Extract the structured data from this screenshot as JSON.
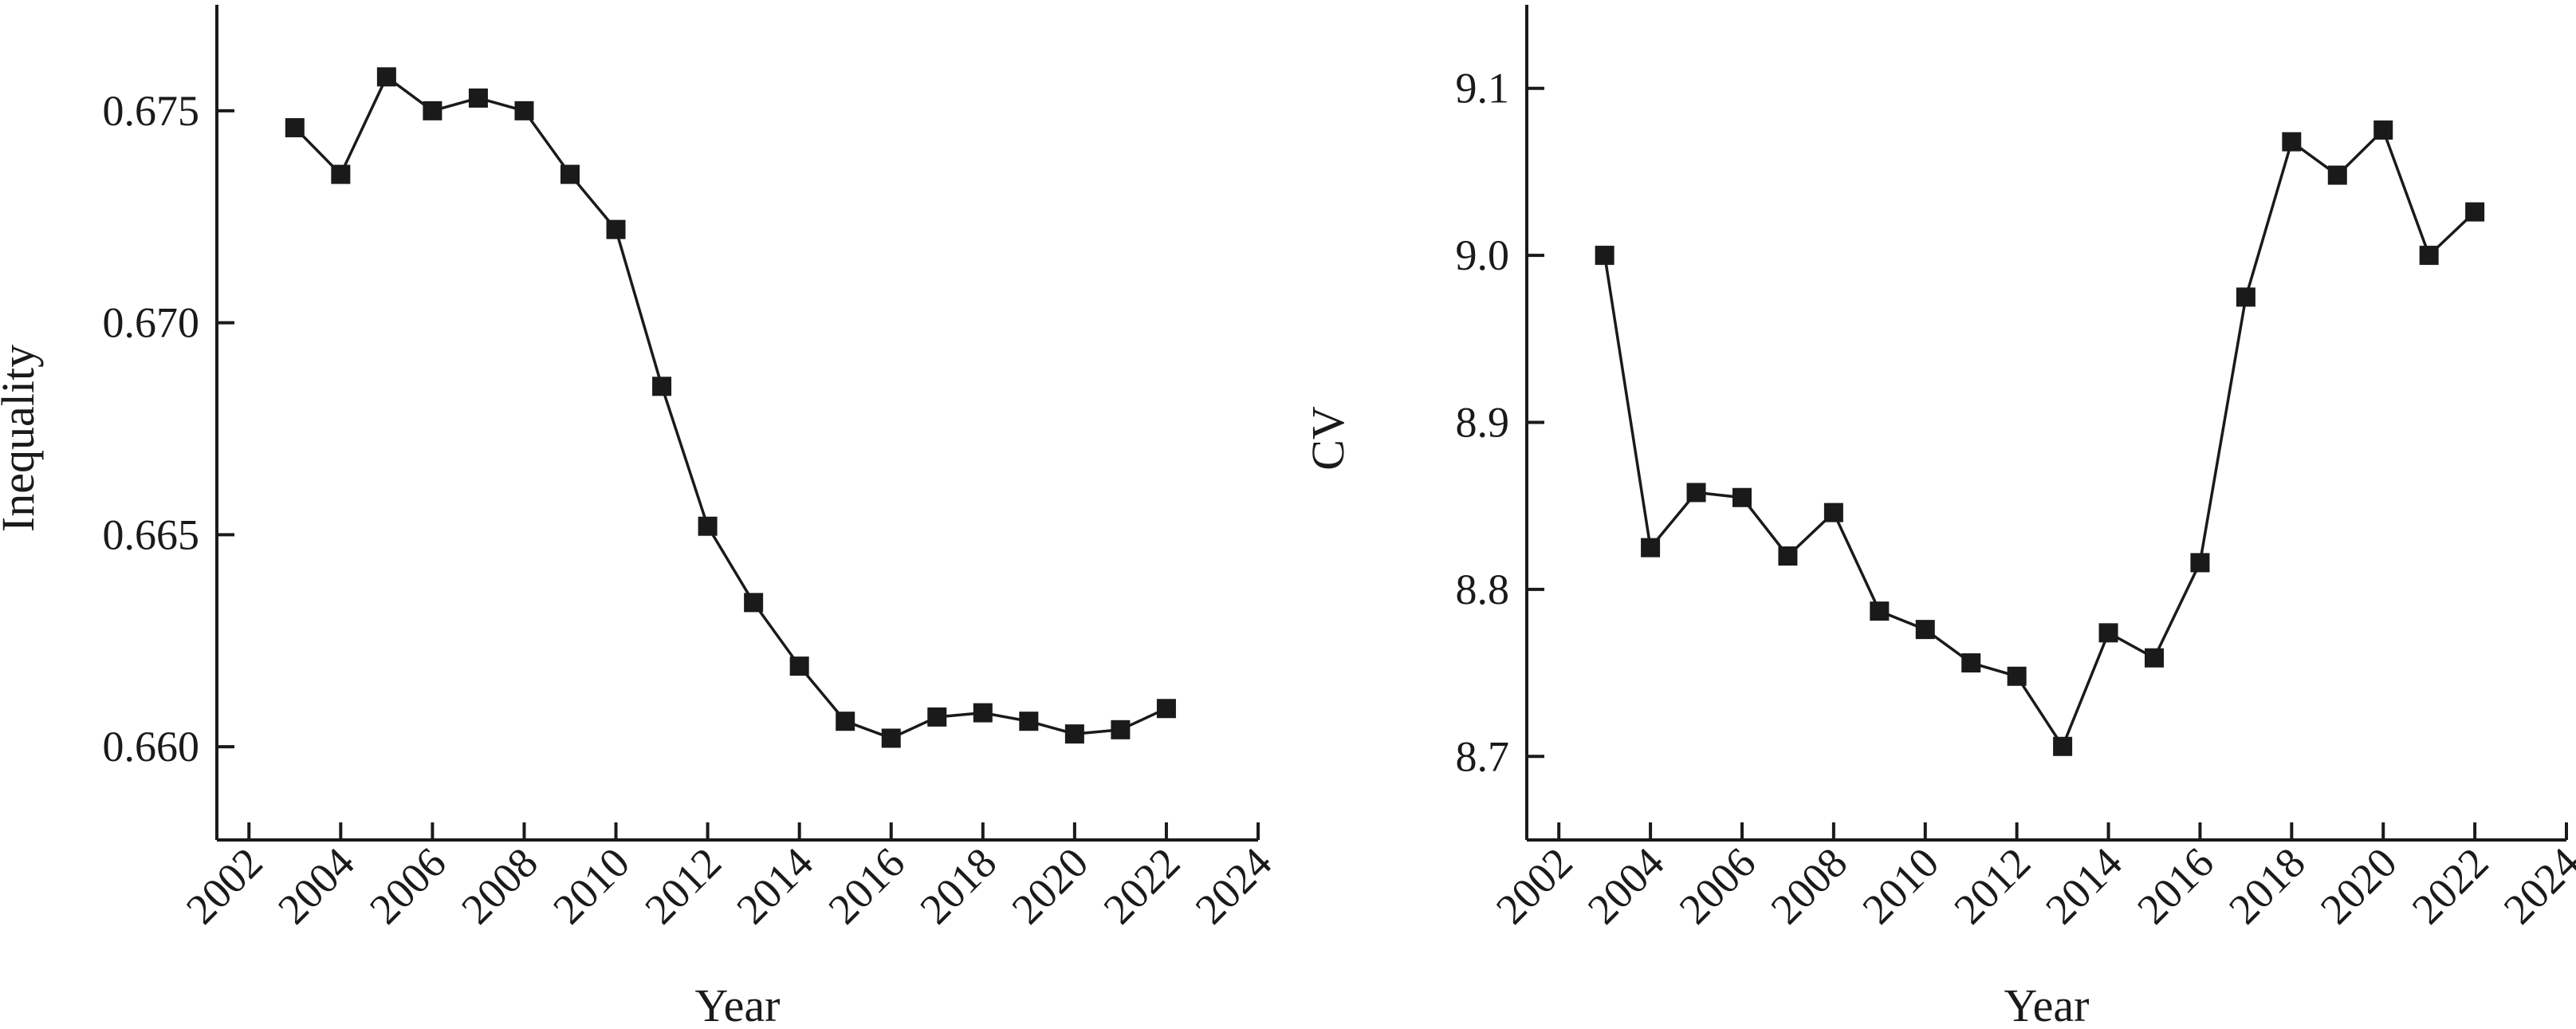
{
  "chart_data": [
    {
      "type": "line",
      "title": "",
      "xlabel": "Year",
      "ylabel": "Inequality",
      "xlim": [
        2001.3,
        2024
      ],
      "ylim": [
        0.6578,
        0.6775
      ],
      "xticks": [
        2002,
        2004,
        2006,
        2008,
        2010,
        2012,
        2014,
        2016,
        2018,
        2020,
        2022,
        2024
      ],
      "xtick_labels": [
        "2002",
        "2004",
        "2006",
        "2008",
        "2010",
        "2012",
        "2014",
        "2016",
        "2018",
        "2020",
        "2022",
        "2024"
      ],
      "yticks": [
        0.66,
        0.665,
        0.67,
        0.675
      ],
      "ytick_labels": [
        "0.660",
        "0.665",
        "0.670",
        "0.675"
      ],
      "grid": false,
      "legend": "none",
      "x": [
        2003,
        2004,
        2005,
        2006,
        2007,
        2008,
        2009,
        2010,
        2011,
        2012,
        2013,
        2014,
        2015,
        2016,
        2017,
        2018,
        2019,
        2020,
        2021,
        2022
      ],
      "values": [
        0.6746,
        0.6735,
        0.6758,
        0.675,
        0.6753,
        0.675,
        0.6735,
        0.6722,
        0.6685,
        0.6652,
        0.6634,
        0.6619,
        0.6606,
        0.6602,
        0.6607,
        0.6608,
        0.6606,
        0.6603,
        0.6604,
        0.6609
      ]
    },
    {
      "type": "line",
      "title": "",
      "xlabel": "Year",
      "ylabel": "CV",
      "xlim": [
        2001.3,
        2024
      ],
      "ylim": [
        8.65,
        9.15
      ],
      "xticks": [
        2002,
        2004,
        2006,
        2008,
        2010,
        2012,
        2014,
        2016,
        2018,
        2020,
        2022,
        2024
      ],
      "xtick_labels": [
        "2002",
        "2004",
        "2006",
        "2008",
        "2010",
        "2012",
        "2014",
        "2016",
        "2018",
        "2020",
        "2022",
        "2024"
      ],
      "yticks": [
        8.7,
        8.8,
        8.9,
        9.0,
        9.1
      ],
      "ytick_labels": [
        "8.7",
        "8.8",
        "8.9",
        "9.0",
        "9.1"
      ],
      "grid": false,
      "legend": "none",
      "x": [
        2003,
        2004,
        2005,
        2006,
        2007,
        2008,
        2009,
        2010,
        2011,
        2012,
        2013,
        2014,
        2015,
        2016,
        2017,
        2018,
        2019,
        2020,
        2021,
        2022
      ],
      "values": [
        9.0,
        8.825,
        8.858,
        8.855,
        8.82,
        8.846,
        8.787,
        8.776,
        8.756,
        8.748,
        8.706,
        8.774,
        8.759,
        8.816,
        8.975,
        9.068,
        9.048,
        9.075,
        9.0,
        9.026
      ]
    }
  ]
}
